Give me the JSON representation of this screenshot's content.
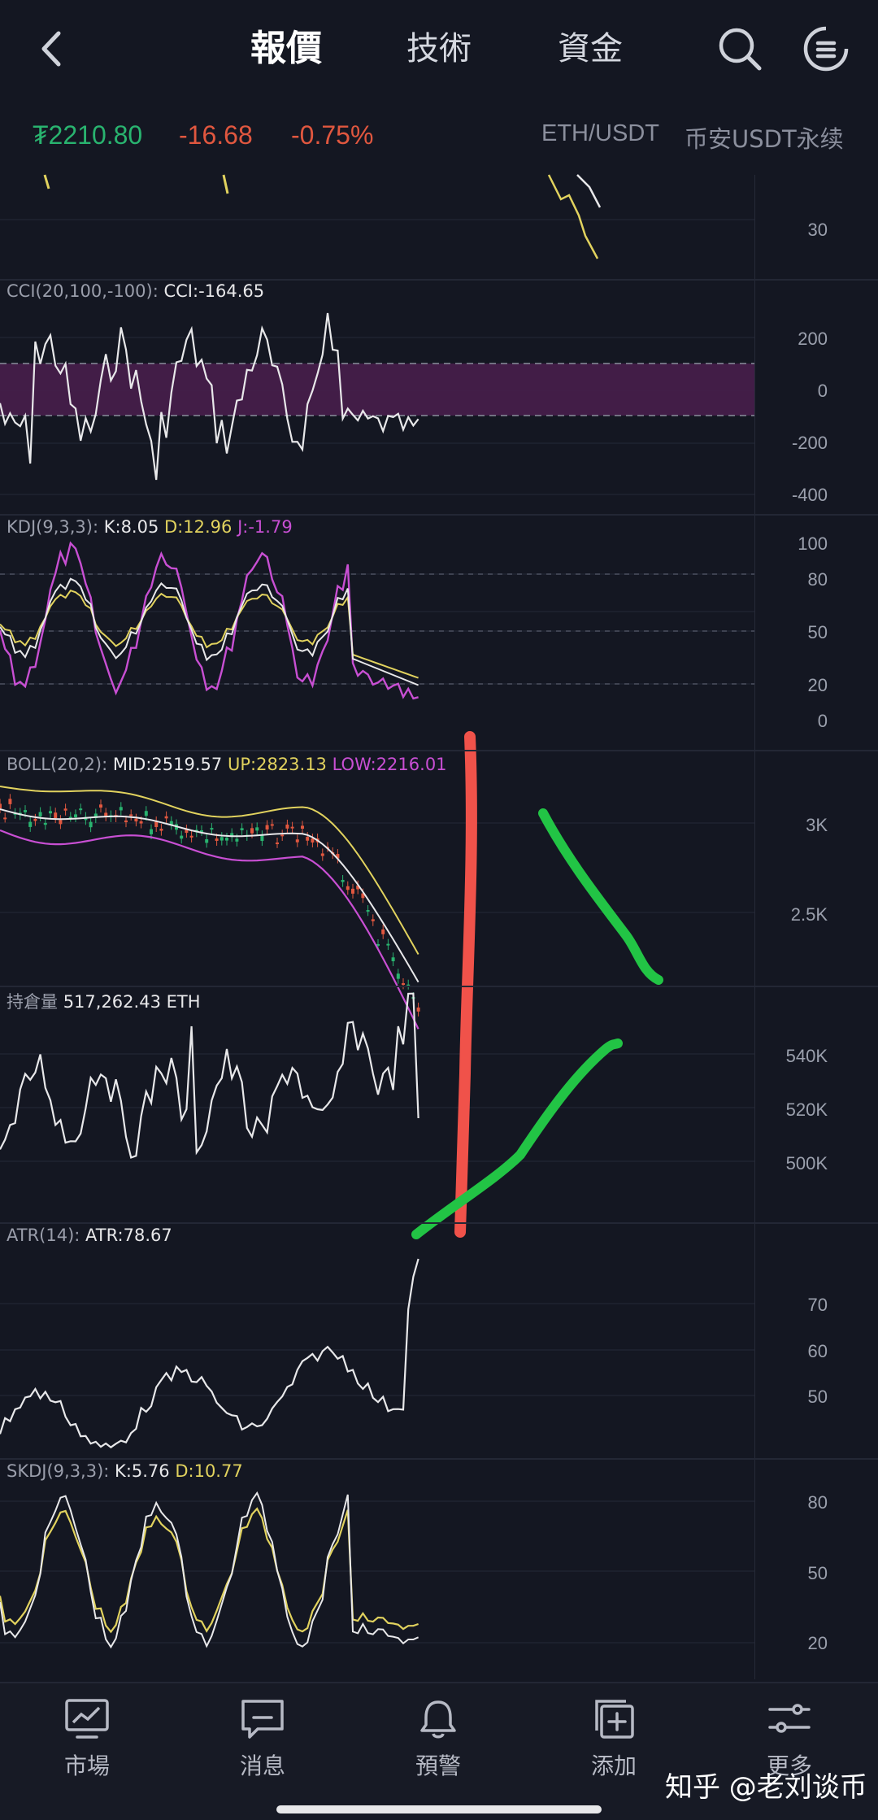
{
  "header": {
    "back_icon": "chevron-left-icon",
    "tabs": [
      {
        "label": "報價",
        "active": true
      },
      {
        "label": "技術",
        "active": false
      },
      {
        "label": "資金",
        "active": false
      }
    ],
    "search_icon": "search-icon",
    "menu_icon": "menu-icon"
  },
  "ticker": {
    "last_price": "₮2210.80",
    "change": "-16.68",
    "change_pct": "-0.75%",
    "pair": "ETH/USDT",
    "exchange": "币安USDT永续",
    "up_color": "#29b36f",
    "down_color": "#e0573f"
  },
  "panes": {
    "top_partial": {
      "axis": [
        "30"
      ]
    },
    "cci": {
      "label": "CCI(20,100,-100):",
      "value": "CCI:-164.65",
      "axis": [
        "200",
        "0",
        "-200",
        "-400"
      ],
      "band_color": "#4a1f4e"
    },
    "kdj": {
      "label": "KDJ(9,3,3):",
      "k": "K:8.05",
      "d": "D:12.96",
      "j": "J:-1.79",
      "axis": [
        "100",
        "80",
        "50",
        "20",
        "0"
      ]
    },
    "boll": {
      "label": "BOLL(20,2):",
      "mid": "MID:2519.57",
      "up": "UP:2823.13",
      "low": "LOW:2216.01",
      "axis": [
        "3K",
        "2.5K"
      ]
    },
    "oi": {
      "label": "持倉量",
      "value": "517,262.43 ETH",
      "axis": [
        "540K",
        "520K",
        "500K"
      ]
    },
    "atr": {
      "label": "ATR(14):",
      "value": "ATR:78.67",
      "axis": [
        "70",
        "60",
        "50"
      ]
    },
    "skdj": {
      "label": "SKDJ(9,3,3):",
      "k": "K:5.76",
      "d": "D:10.77",
      "axis": [
        "80",
        "50",
        "20"
      ]
    }
  },
  "annotation_colors": {
    "red": "#f0524a",
    "green": "#22c445"
  },
  "bottom_nav": [
    {
      "label": "市場",
      "icon": "market-chart-icon"
    },
    {
      "label": "消息",
      "icon": "message-icon"
    },
    {
      "label": "預警",
      "icon": "bell-icon"
    },
    {
      "label": "添加",
      "icon": "add-icon"
    },
    {
      "label": "更多",
      "icon": "more-settings-icon"
    }
  ],
  "watermark": "知乎 @老刘谈币"
}
